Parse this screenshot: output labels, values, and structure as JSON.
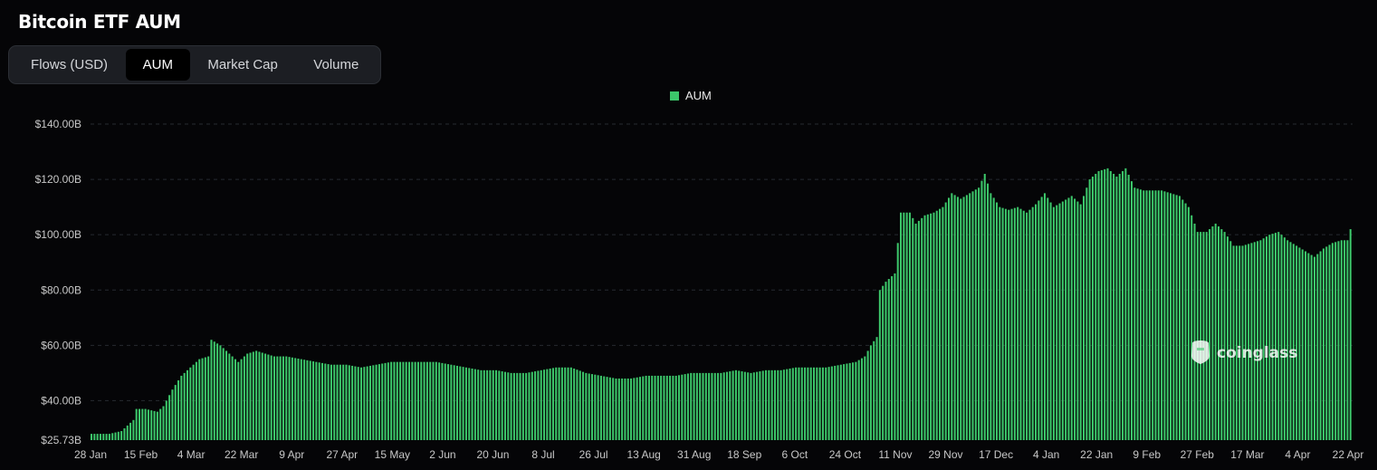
{
  "page_title": "Bitcoin ETF AUM",
  "tabs": [
    {
      "label": "Flows (USD)",
      "active": false
    },
    {
      "label": "AUM",
      "active": true
    },
    {
      "label": "Market Cap",
      "active": false
    },
    {
      "label": "Volume",
      "active": false
    }
  ],
  "watermark": "coinglass",
  "colors": {
    "bar": "#3cc66a",
    "background": "#050507",
    "legend": "#3cc66a"
  },
  "chart_data": {
    "type": "bar",
    "title": "Bitcoin ETF AUM",
    "legend": [
      {
        "name": "AUM",
        "color": "#3cc66a"
      }
    ],
    "legend_position": "top-center",
    "grid": true,
    "ylim": [
      25.73,
      140
    ],
    "y_ticks": [
      "$140.00B",
      "$120.00B",
      "$100.00B",
      "$80.00B",
      "$60.00B",
      "$40.00B",
      "$25.73B"
    ],
    "y_tick_values": [
      140,
      120,
      100,
      80,
      60,
      40,
      25.73
    ],
    "x_ticks": [
      "28 Jan",
      "15 Feb",
      "4 Mar",
      "22 Mar",
      "9 Apr",
      "27 Apr",
      "15 May",
      "2 Jun",
      "20 Jun",
      "8 Jul",
      "26 Jul",
      "13 Aug",
      "31 Aug",
      "18 Sep",
      "6 Oct",
      "24 Oct",
      "11 Nov",
      "29 Nov",
      "17 Dec",
      "4 Jan",
      "22 Jan",
      "9 Feb",
      "27 Feb",
      "17 Mar",
      "4 Apr",
      "22 Apr"
    ],
    "series_keypoints": [
      [
        0,
        28
      ],
      [
        6,
        28
      ],
      [
        10,
        29
      ],
      [
        12,
        31
      ],
      [
        14,
        33
      ],
      [
        15,
        37
      ],
      [
        18,
        37
      ],
      [
        22,
        36
      ],
      [
        24,
        38
      ],
      [
        27,
        44
      ],
      [
        30,
        49
      ],
      [
        33,
        52
      ],
      [
        36,
        55
      ],
      [
        39,
        56
      ],
      [
        40,
        62
      ],
      [
        43,
        60
      ],
      [
        46,
        57
      ],
      [
        49,
        54
      ],
      [
        52,
        57
      ],
      [
        55,
        58
      ],
      [
        58,
        57
      ],
      [
        61,
        56
      ],
      [
        65,
        56
      ],
      [
        70,
        55
      ],
      [
        75,
        54
      ],
      [
        80,
        53
      ],
      [
        85,
        53
      ],
      [
        90,
        52
      ],
      [
        95,
        53
      ],
      [
        100,
        54
      ],
      [
        105,
        54
      ],
      [
        110,
        54
      ],
      [
        115,
        54
      ],
      [
        120,
        53
      ],
      [
        125,
        52
      ],
      [
        130,
        51
      ],
      [
        135,
        51
      ],
      [
        140,
        50
      ],
      [
        145,
        50
      ],
      [
        150,
        51
      ],
      [
        155,
        52
      ],
      [
        160,
        52
      ],
      [
        165,
        50
      ],
      [
        170,
        49
      ],
      [
        175,
        48
      ],
      [
        180,
        48
      ],
      [
        185,
        49
      ],
      [
        190,
        49
      ],
      [
        195,
        49
      ],
      [
        200,
        50
      ],
      [
        205,
        50
      ],
      [
        210,
        50
      ],
      [
        215,
        51
      ],
      [
        220,
        50
      ],
      [
        225,
        51
      ],
      [
        230,
        51
      ],
      [
        235,
        52
      ],
      [
        240,
        52
      ],
      [
        245,
        52
      ],
      [
        250,
        53
      ],
      [
        255,
        54
      ],
      [
        258,
        56
      ],
      [
        260,
        60
      ],
      [
        262,
        63
      ],
      [
        263,
        80
      ],
      [
        265,
        83
      ],
      [
        268,
        86
      ],
      [
        270,
        108
      ],
      [
        273,
        108
      ],
      [
        275,
        104
      ],
      [
        278,
        107
      ],
      [
        281,
        108
      ],
      [
        284,
        110
      ],
      [
        287,
        115
      ],
      [
        290,
        113
      ],
      [
        293,
        115
      ],
      [
        296,
        117
      ],
      [
        298,
        122
      ],
      [
        300,
        115
      ],
      [
        303,
        110
      ],
      [
        306,
        109
      ],
      [
        309,
        110
      ],
      [
        312,
        108
      ],
      [
        315,
        111
      ],
      [
        318,
        115
      ],
      [
        321,
        110
      ],
      [
        324,
        112
      ],
      [
        327,
        114
      ],
      [
        330,
        111
      ],
      [
        333,
        120
      ],
      [
        336,
        123
      ],
      [
        339,
        124
      ],
      [
        342,
        121
      ],
      [
        345,
        124
      ],
      [
        348,
        117
      ],
      [
        351,
        116
      ],
      [
        354,
        116
      ],
      [
        357,
        116
      ],
      [
        360,
        115
      ],
      [
        363,
        114
      ],
      [
        366,
        110
      ],
      [
        369,
        101
      ],
      [
        372,
        101
      ],
      [
        375,
        104
      ],
      [
        378,
        101
      ],
      [
        381,
        96
      ],
      [
        384,
        96
      ],
      [
        387,
        97
      ],
      [
        390,
        98
      ],
      [
        393,
        100
      ],
      [
        396,
        101
      ],
      [
        399,
        98
      ],
      [
        402,
        96
      ],
      [
        405,
        94
      ],
      [
        408,
        92
      ],
      [
        411,
        95
      ],
      [
        414,
        97
      ],
      [
        417,
        98
      ],
      [
        419,
        98
      ],
      [
        420,
        102
      ]
    ]
  }
}
